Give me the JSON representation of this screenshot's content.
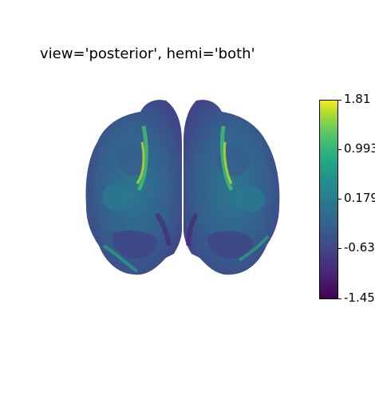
{
  "title": "view='posterior', hemi='both'",
  "image": {
    "subject": "brain-surface-posterior-view",
    "colormap": "viridis"
  },
  "colorbar": {
    "ticks": [
      "1.81",
      "0.993",
      "0.179",
      "-0.63",
      "-1.45"
    ],
    "min_value": -1.45,
    "max_value": 1.81,
    "colors": [
      "#440154",
      "#414487",
      "#2a788e",
      "#22a884",
      "#7ad151",
      "#fde725"
    ]
  }
}
